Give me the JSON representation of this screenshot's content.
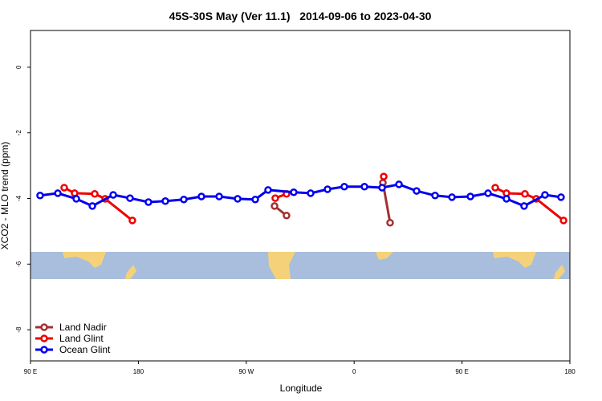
{
  "chart_data": {
    "type": "line",
    "title": "45S-30S May (Ver 11.1)   2014-09-06 to 2023-04-30",
    "x_label": "Longitude",
    "y_label": "XCO2 - MLO trend (ppm)",
    "xlim": [
      90,
      540
    ],
    "xticks": [
      {
        "value": 90,
        "label": "90 E"
      },
      180,
      {
        "value": 270,
        "label": "90 W"
      },
      {
        "value": 360,
        "label": "0"
      },
      {
        "value": 450,
        "label": "90 E"
      },
      {
        "value": 540,
        "label": "180"
      }
    ],
    "ylim": [
      -8.95,
      1.12
    ],
    "yticks": [
      -8,
      -6,
      -4,
      -2,
      0
    ],
    "legend": "bottom-left",
    "series": [
      {
        "name": "Land Nadir",
        "color": "#a33030",
        "x": [
          293.6,
          303.6,
          null,
          384.0,
          390.0
        ],
        "values": [
          -4.23,
          -4.52,
          null,
          -3.52,
          -4.74
        ]
      },
      {
        "name": "Land Glint",
        "color": "#ee0000",
        "x": [
          118.1,
          126.8,
          143.6,
          152.3,
          175.0,
          null,
          294.2,
          303.6,
          null,
          384.7,
          null,
          477.7,
          487.1,
          502.5,
          511.9,
          534.7
        ],
        "values": [
          -3.67,
          -3.84,
          -3.86,
          -4.01,
          -4.67,
          null,
          -3.99,
          -3.86,
          null,
          -3.33,
          null,
          -3.67,
          -3.84,
          -3.86,
          -4.01,
          -4.67
        ]
      },
      {
        "name": "Ocean Glint",
        "color": "#0000ee",
        "x": [
          98.0,
          112.8,
          128.2,
          141.6,
          159.0,
          173.0,
          188.4,
          202.5,
          217.9,
          232.6,
          247.4,
          262.8,
          277.5,
          288.2,
          309.6,
          323.7,
          337.8,
          351.8,
          368.6,
          383.3,
          397.4,
          412.1,
          427.5,
          441.6,
          457.0,
          471.7,
          487.1,
          501.8,
          519.2,
          532.6
        ],
        "values": [
          -3.91,
          -3.84,
          -4.01,
          -4.23,
          -3.89,
          -3.99,
          -4.11,
          -4.08,
          -4.03,
          -3.94,
          -3.94,
          -4.01,
          -4.03,
          -3.74,
          -3.81,
          -3.84,
          -3.72,
          -3.64,
          -3.64,
          -3.67,
          -3.57,
          -3.77,
          -3.91,
          -3.96,
          -3.94,
          -3.84,
          -4.01,
          -4.23,
          -3.89,
          -3.96
        ]
      }
    ]
  }
}
